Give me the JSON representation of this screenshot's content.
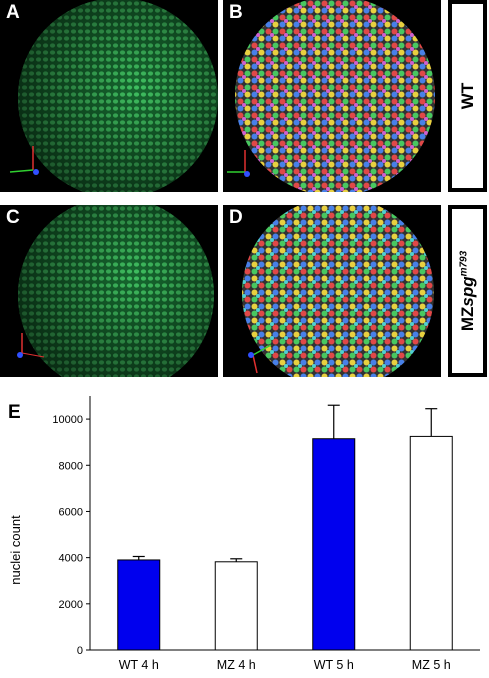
{
  "panels": {
    "a": {
      "letter": "A"
    },
    "b": {
      "letter": "B"
    },
    "c": {
      "letter": "C"
    },
    "d": {
      "letter": "D"
    }
  },
  "side_labels": {
    "top": {
      "text": "WT"
    },
    "bottom": {
      "prefix": "MZ",
      "gene": "spg",
      "allele": "m793"
    }
  },
  "colors": {
    "nuclei_green": "#2e9a4e",
    "bar_wt": "#0000ee",
    "bar_mz": "#ffffff"
  },
  "chart_data": {
    "type": "bar",
    "panel_letter": "E",
    "categories": [
      "WT 4 h",
      "MZ 4 h",
      "WT 5 h",
      "MZ 5 h"
    ],
    "values": [
      3900,
      3820,
      9150,
      9250
    ],
    "errors": [
      150,
      130,
      1450,
      1200
    ],
    "ylabel": "nuclei count",
    "ylim": [
      0,
      11000
    ],
    "yticks": [
      0,
      2000,
      4000,
      6000,
      8000,
      10000
    ],
    "grid": false
  }
}
